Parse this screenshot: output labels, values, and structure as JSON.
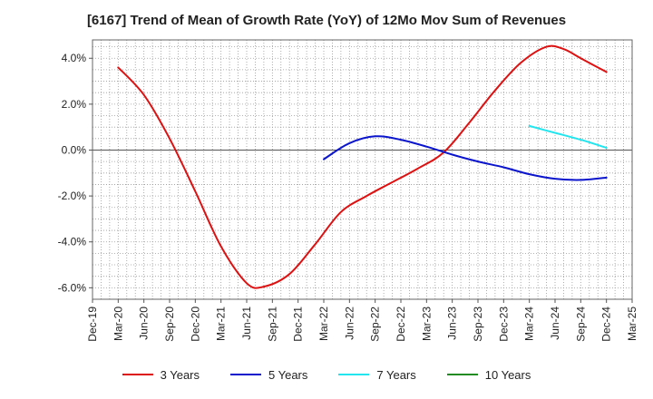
{
  "chart_data": {
    "type": "line",
    "title": "[6167]  Trend of Mean of Growth Rate (YoY) of 12Mo Mov Sum of Revenues",
    "xlabel": "",
    "ylabel": "",
    "x_ticks": [
      "Dec-19",
      "Mar-20",
      "Jun-20",
      "Sep-20",
      "Dec-20",
      "Mar-21",
      "Jun-21",
      "Sep-21",
      "Dec-21",
      "Mar-22",
      "Jun-22",
      "Sep-22",
      "Dec-22",
      "Mar-23",
      "Jun-23",
      "Sep-23",
      "Dec-23",
      "Mar-24",
      "Jun-24",
      "Sep-24",
      "Dec-24",
      "Mar-25"
    ],
    "y_ticks": [
      "4.0%",
      "2.0%",
      "0.0%",
      "-2.0%",
      "-4.0%",
      "-6.0%"
    ],
    "y_tick_values": [
      4,
      2,
      0,
      -2,
      -4,
      -6
    ],
    "ylim": [
      -6.5,
      4.8
    ],
    "x_range_months": [
      0,
      63
    ],
    "grid": true,
    "legend_position": "bottom",
    "series": [
      {
        "name": "3 Years",
        "color": "#dd1111",
        "points": [
          [
            3,
            3.6
          ],
          [
            6,
            2.4
          ],
          [
            9,
            0.5
          ],
          [
            12,
            -1.8
          ],
          [
            15,
            -4.2
          ],
          [
            18,
            -5.8
          ],
          [
            20,
            -5.95
          ],
          [
            23,
            -5.4
          ],
          [
            26,
            -4.1
          ],
          [
            29,
            -2.7
          ],
          [
            32,
            -2.0
          ],
          [
            35,
            -1.4
          ],
          [
            38,
            -0.8
          ],
          [
            41,
            -0.1
          ],
          [
            44,
            1.2
          ],
          [
            47,
            2.6
          ],
          [
            50,
            3.8
          ],
          [
            53,
            4.5
          ],
          [
            55,
            4.4
          ],
          [
            57,
            4.0
          ],
          [
            60,
            3.4
          ]
        ]
      },
      {
        "name": "5 Years",
        "color": "#0b15cc",
        "points": [
          [
            27,
            -0.4
          ],
          [
            30,
            0.3
          ],
          [
            33,
            0.6
          ],
          [
            36,
            0.45
          ],
          [
            39,
            0.15
          ],
          [
            42,
            -0.2
          ],
          [
            45,
            -0.5
          ],
          [
            48,
            -0.75
          ],
          [
            51,
            -1.05
          ],
          [
            54,
            -1.25
          ],
          [
            57,
            -1.3
          ],
          [
            60,
            -1.2
          ]
        ]
      },
      {
        "name": "7 Years",
        "color": "#22e5ee",
        "points": [
          [
            51,
            1.05
          ],
          [
            54,
            0.75
          ],
          [
            57,
            0.45
          ],
          [
            60,
            0.1
          ]
        ]
      },
      {
        "name": "10 Years",
        "color": "#228b22",
        "points": []
      }
    ]
  }
}
